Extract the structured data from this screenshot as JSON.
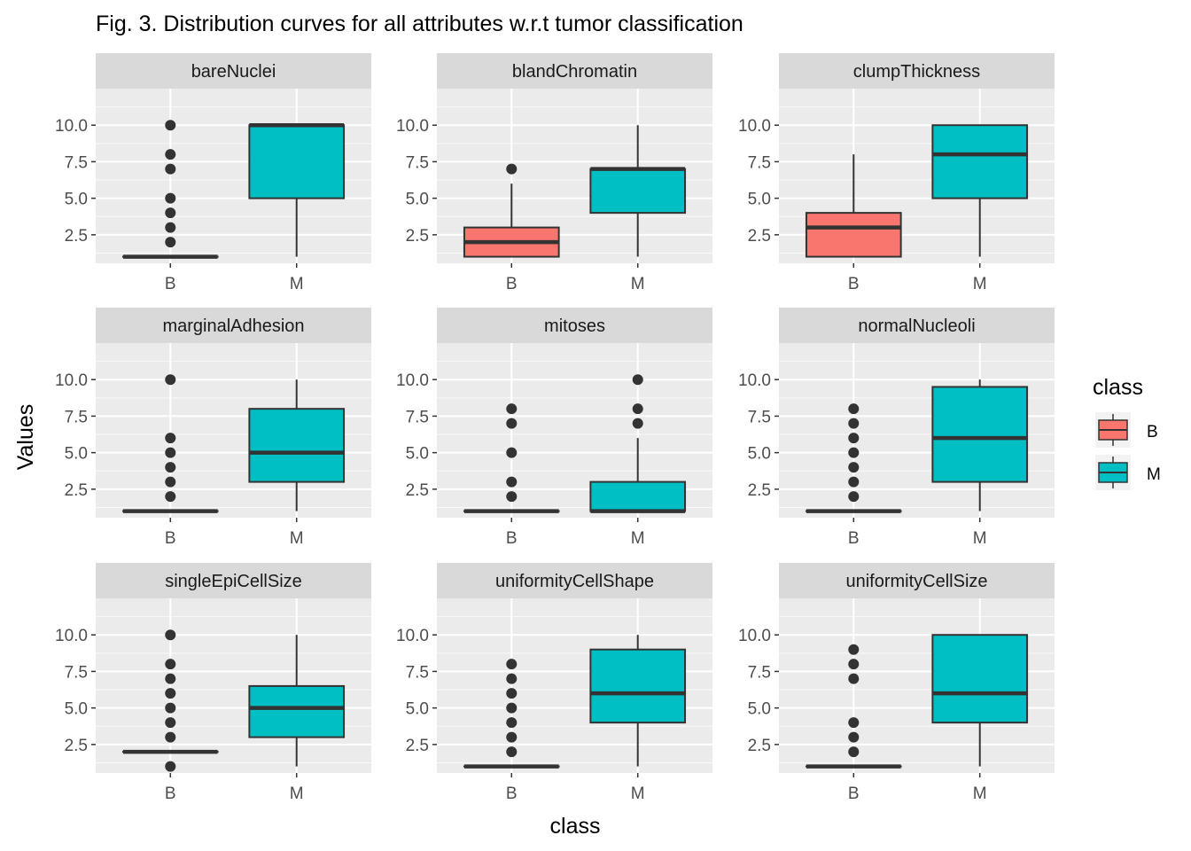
{
  "chart_data": {
    "type": "boxplot",
    "title": "Fig. 3. Distribution curves for all attributes w.r.t tumor classification",
    "xlabel": "class",
    "ylabel": "Values",
    "categories": [
      "B",
      "M"
    ],
    "ylim": [
      0.55,
      12.5
    ],
    "yticks": [
      2.5,
      5.0,
      7.5,
      10.0
    ],
    "ytick_labels": [
      "2.5",
      "5.0",
      "7.5",
      "10.0"
    ],
    "legend": {
      "title": "class",
      "entries": [
        "B",
        "M"
      ],
      "position": "right"
    },
    "colors": {
      "B": "#F8766D",
      "M": "#00BFC4",
      "panel": "#EBEBEB",
      "strip": "#D9D9D9",
      "grid": "#FFFFFF"
    },
    "panels": [
      {
        "name": "bareNuclei",
        "boxes": [
          {
            "class": "B",
            "q1": 1,
            "median": 1,
            "q3": 1,
            "whisker_low": 1,
            "whisker_high": 1,
            "outliers": [
              2,
              3,
              4,
              5,
              7,
              8,
              10
            ]
          },
          {
            "class": "M",
            "q1": 5,
            "median": 10,
            "q3": 10,
            "whisker_low": 1,
            "whisker_high": 10,
            "outliers": []
          }
        ]
      },
      {
        "name": "blandChromatin",
        "boxes": [
          {
            "class": "B",
            "q1": 1,
            "median": 2,
            "q3": 3,
            "whisker_low": 1,
            "whisker_high": 6,
            "outliers": [
              7
            ]
          },
          {
            "class": "M",
            "q1": 4,
            "median": 7,
            "q3": 7,
            "whisker_low": 1,
            "whisker_high": 10,
            "outliers": []
          }
        ]
      },
      {
        "name": "clumpThickness",
        "boxes": [
          {
            "class": "B",
            "q1": 1,
            "median": 3,
            "q3": 4,
            "whisker_low": 1,
            "whisker_high": 8,
            "outliers": []
          },
          {
            "class": "M",
            "q1": 5,
            "median": 8,
            "q3": 10,
            "whisker_low": 1,
            "whisker_high": 10,
            "outliers": []
          }
        ]
      },
      {
        "name": "marginalAdhesion",
        "boxes": [
          {
            "class": "B",
            "q1": 1,
            "median": 1,
            "q3": 1,
            "whisker_low": 1,
            "whisker_high": 1,
            "outliers": [
              2,
              3,
              4,
              5,
              6,
              10
            ]
          },
          {
            "class": "M",
            "q1": 3,
            "median": 5,
            "q3": 8,
            "whisker_low": 1,
            "whisker_high": 10,
            "outliers": []
          }
        ]
      },
      {
        "name": "mitoses",
        "boxes": [
          {
            "class": "B",
            "q1": 1,
            "median": 1,
            "q3": 1,
            "whisker_low": 1,
            "whisker_high": 1,
            "outliers": [
              2,
              3,
              5,
              7,
              8
            ]
          },
          {
            "class": "M",
            "q1": 1,
            "median": 1,
            "q3": 3,
            "whisker_low": 1,
            "whisker_high": 6,
            "outliers": [
              7,
              8,
              10
            ]
          }
        ]
      },
      {
        "name": "normalNucleoli",
        "boxes": [
          {
            "class": "B",
            "q1": 1,
            "median": 1,
            "q3": 1,
            "whisker_low": 1,
            "whisker_high": 1,
            "outliers": [
              2,
              3,
              4,
              5,
              6,
              7,
              8
            ]
          },
          {
            "class": "M",
            "q1": 3,
            "median": 6,
            "q3": 9.5,
            "whisker_low": 1,
            "whisker_high": 10,
            "outliers": []
          }
        ]
      },
      {
        "name": "singleEpiCellSize",
        "boxes": [
          {
            "class": "B",
            "q1": 2,
            "median": 2,
            "q3": 2,
            "whisker_low": 2,
            "whisker_high": 2,
            "outliers": [
              1,
              3,
              4,
              5,
              6,
              7,
              8,
              10
            ]
          },
          {
            "class": "M",
            "q1": 3,
            "median": 5,
            "q3": 6.5,
            "whisker_low": 1,
            "whisker_high": 10,
            "outliers": []
          }
        ]
      },
      {
        "name": "uniformityCellShape",
        "boxes": [
          {
            "class": "B",
            "q1": 1,
            "median": 1,
            "q3": 1,
            "whisker_low": 1,
            "whisker_high": 1,
            "outliers": [
              2,
              3,
              4,
              5,
              6,
              7,
              8
            ]
          },
          {
            "class": "M",
            "q1": 4,
            "median": 6,
            "q3": 9,
            "whisker_low": 1,
            "whisker_high": 10,
            "outliers": []
          }
        ]
      },
      {
        "name": "uniformityCellSize",
        "boxes": [
          {
            "class": "B",
            "q1": 1,
            "median": 1,
            "q3": 1,
            "whisker_low": 1,
            "whisker_high": 1,
            "outliers": [
              2,
              3,
              4,
              7,
              8,
              9
            ]
          },
          {
            "class": "M",
            "q1": 4,
            "median": 6,
            "q3": 10,
            "whisker_low": 1,
            "whisker_high": 10,
            "outliers": []
          }
        ]
      }
    ]
  }
}
